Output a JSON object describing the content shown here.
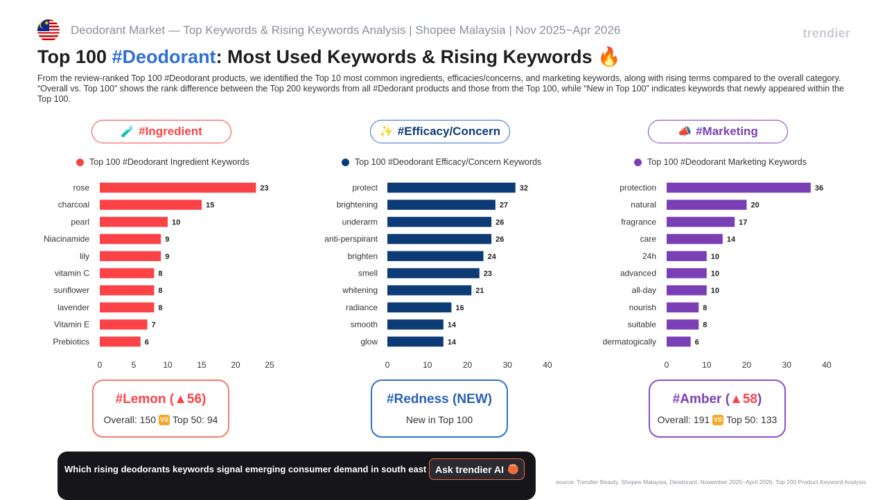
{
  "header": {
    "subtitle": "Deodorant Market — Top Keywords & Rising Keywords Analysis | Shopee Malaysia | Nov 2025~Apr 2026",
    "brand": "trendier",
    "title_part1": "Top 100 ",
    "title_highlight": "#Deodorant",
    "title_part2": ": Most Used Keywords & Rising Keywords",
    "title_emoji": "🔥",
    "description": "From the review-ranked Top 100 #Deodorant products, we identified the Top 10 most common ingredients, efficacies/concerns, and marketing keywords, along with rising terms compared to the overall category. “Overall vs. Top 100” shows the rank difference between the Top 200 keywords from all #Dedorant products and those from the Top 100, while “New in Top 100” indicates keywords that newly appeared within the Top 100."
  },
  "sections": [
    {
      "pill_emoji": "🧪",
      "pill_label": "#Ingredient",
      "color": "#fb4347",
      "legend": "Top 100 #Deodorant Ingredient Keywords",
      "card_keyword": "#Lemon",
      "card_change": "▲56",
      "card_overall": "Overall: 150",
      "card_vs": "VS",
      "card_top": "Top 50: 94"
    },
    {
      "pill_emoji": "✨",
      "pill_label": "#Efficacy/Concern",
      "color": "#0d3b75",
      "legend": "Top 100 #Deodorant Efficacy/Concern Keywords",
      "card_keyword": "#Redness",
      "card_change": "NEW",
      "card_note": "New in Top 100"
    },
    {
      "pill_emoji": "📣",
      "pill_label": "#Marketing",
      "color": "#7a3fb5",
      "legend": "Top 100 #Deodorant Marketing Keywords",
      "card_keyword": "#Amber",
      "card_change": "▲58",
      "card_overall": "Overall: 191",
      "card_vs": "VS",
      "card_top": "Top 50: 133"
    }
  ],
  "chart_data": [
    {
      "type": "bar",
      "orientation": "horizontal",
      "title": "Top 100 #Deodorant Ingredient Keywords",
      "categories": [
        "rose",
        "charcoal",
        "pearl",
        "Niacinamide",
        "lily",
        "vitamin C",
        "sunflower",
        "lavender",
        "Vitamin E",
        "Prebiotics"
      ],
      "values": [
        23,
        15,
        10,
        9,
        9,
        8,
        8,
        8,
        7,
        6
      ],
      "xlim": [
        0,
        25
      ],
      "xticks": [
        0,
        5,
        10,
        15,
        20,
        25
      ],
      "color": "#fb4347",
      "grid": false
    },
    {
      "type": "bar",
      "orientation": "horizontal",
      "title": "Top 100 #Deodorant Efficacy/Concern Keywords",
      "categories": [
        "protect",
        "brightening",
        "underarm",
        "anti-perspirant",
        "brighten",
        "smell",
        "whitening",
        "radiance",
        "smooth",
        "glow"
      ],
      "values": [
        32,
        27,
        26,
        26,
        24,
        23,
        21,
        16,
        14,
        14
      ],
      "xlim": [
        0,
        40
      ],
      "xticks": [
        0,
        10,
        20,
        30,
        40
      ],
      "color": "#0d3b75",
      "grid": false
    },
    {
      "type": "bar",
      "orientation": "horizontal",
      "title": "Top 100 #Deodorant Marketing Keywords",
      "categories": [
        "protection",
        "natural",
        "fragrance",
        "care",
        "24h",
        "advanced",
        "all-day",
        "nourish",
        "suitable",
        "dermatogically"
      ],
      "values": [
        36,
        20,
        17,
        14,
        10,
        10,
        10,
        8,
        8,
        6
      ],
      "xlim": [
        0,
        40
      ],
      "xticks": [
        0,
        10,
        20,
        30,
        40
      ],
      "color": "#7a3fb5",
      "grid": false
    }
  ],
  "ai": {
    "question": "Which rising deodorants keywords signal emerging consumer demand in south east asia?",
    "button_label": "Ask trendier AI"
  },
  "source": "source: Trendier Beauty, Shopee Malaysia, Deodorant, November 2025~April 2026, Top 200 Product Keyword Analysis"
}
